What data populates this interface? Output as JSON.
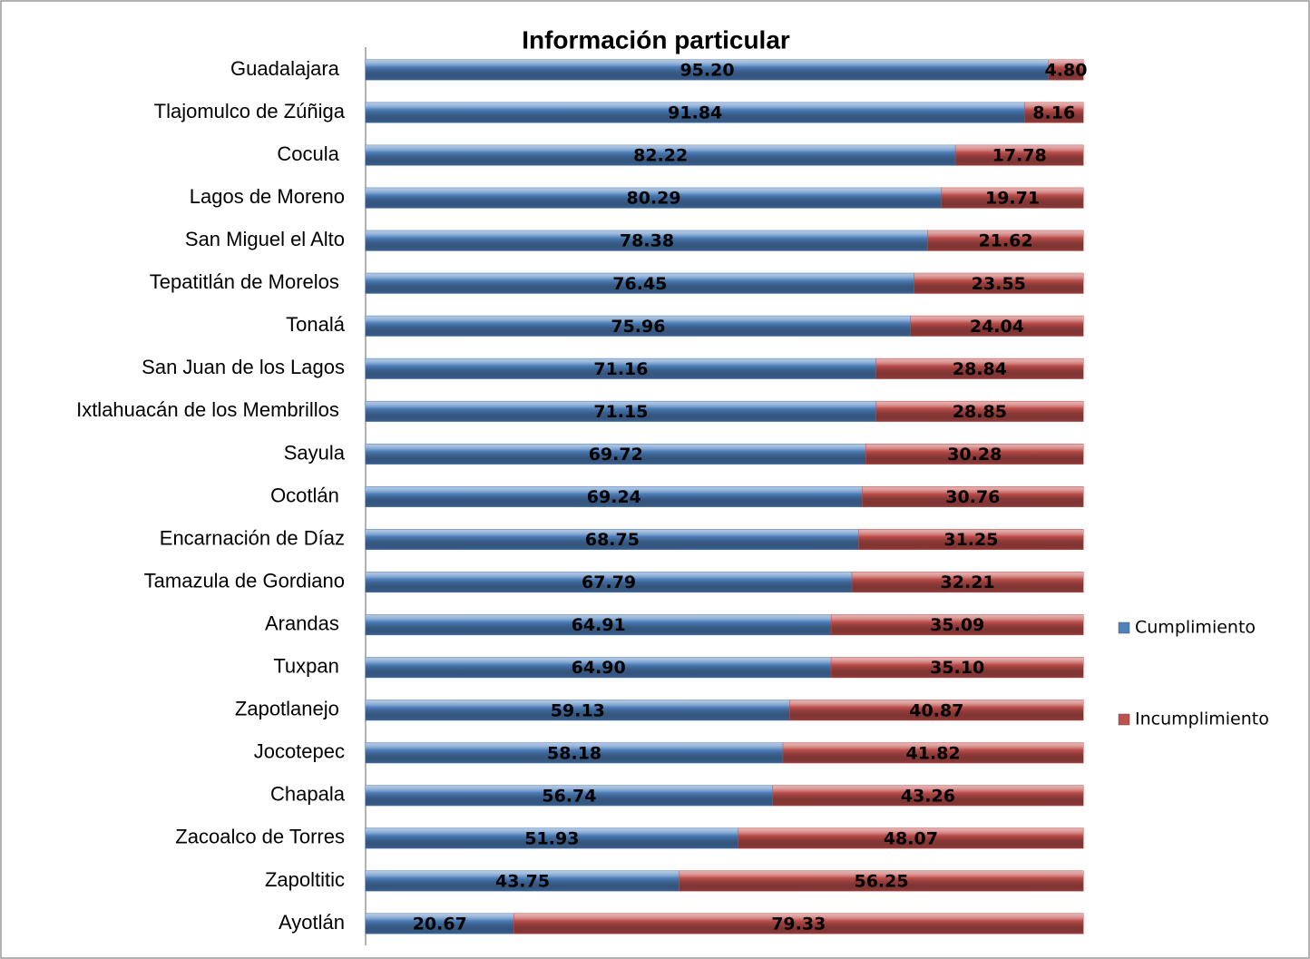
{
  "chart_data": {
    "type": "stacked-barh",
    "title": "Información particular",
    "categories": [
      "Guadalajara ",
      "Tlajomulco de Zúñiga",
      "Cocula ",
      "Lagos de Moreno",
      "San Miguel el Alto",
      "Tepatitlán de Morelos ",
      "Tonalá",
      "San Juan de los Lagos",
      "Ixtlahuacán de los Membrillos ",
      "Sayula",
      "Ocotlán ",
      "Encarnación de Díaz",
      "Tamazula de Gordiano",
      "Arandas ",
      "Tuxpan ",
      "Zapotlanejo ",
      "Jocotepec",
      "Chapala",
      "Zacoalco de Torres",
      "Zapoltitic",
      "Ayotlán"
    ],
    "series": [
      {
        "name": "Cumplimiento",
        "color": "#4f81bd",
        "values": [
          95.2,
          91.84,
          82.22,
          80.29,
          78.38,
          76.45,
          75.96,
          71.16,
          71.15,
          69.72,
          69.24,
          68.75,
          67.79,
          64.91,
          64.9,
          59.13,
          58.18,
          56.74,
          51.93,
          43.75,
          20.67
        ],
        "value_labels": [
          "95.20",
          "91.84",
          "82.22",
          "80.29",
          "78.38",
          "76.45",
          "75.96",
          "71.16",
          "71.15",
          "69.72",
          "69.24",
          "68.75",
          "67.79",
          "64.91",
          "64.90",
          "59.13",
          "58.18",
          "56.74",
          "51.93",
          "43.75",
          "20.67"
        ]
      },
      {
        "name": "Incumplimiento",
        "color": "#c0504d",
        "values": [
          4.8,
          8.16,
          17.78,
          19.71,
          21.62,
          23.55,
          24.04,
          28.84,
          28.85,
          30.28,
          30.76,
          31.25,
          32.21,
          35.09,
          35.1,
          40.87,
          41.82,
          43.26,
          48.07,
          56.25,
          79.33
        ],
        "value_labels": [
          "4.80",
          "8.16",
          "17.78",
          "19.71",
          "21.62",
          "23.55",
          "24.04",
          "28.84",
          "28.85",
          "30.28",
          "30.76",
          "31.25",
          "32.21",
          "35.09",
          "35.10",
          "40.87",
          "41.82",
          "43.26",
          "48.07",
          "56.25",
          "79.33"
        ]
      }
    ],
    "xlim": [
      0,
      100
    ],
    "legend": "right"
  }
}
